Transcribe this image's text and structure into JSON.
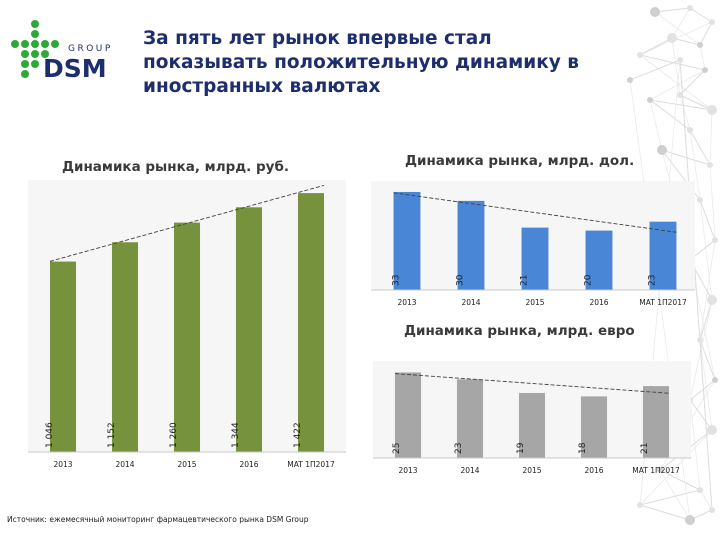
{
  "slide": {
    "title": "За пять лет рынок впервые стал показывать положительную динамику в иностранных валютах",
    "source": "Источник: ежемесячный мониторинг фармацевтического рынка DSM Group"
  },
  "logo": {
    "text_main": "DSM",
    "text_sub": "GROUP",
    "brand_color": "#2ea836",
    "text_color": "#1d2e6e"
  },
  "chart_data": [
    {
      "type": "bar",
      "title": "Динамика рынка, млрд. руб.",
      "categories": [
        "2013",
        "2014",
        "2015",
        "2016",
        "MAT 1П2017"
      ],
      "values": [
        1046,
        1152,
        1260,
        1344,
        1422
      ],
      "value_labels": [
        "1 046",
        "1 152",
        "1 260",
        "1 344",
        "1 422"
      ],
      "color": "#77923c",
      "trendline": true,
      "ylim": [
        0,
        1450
      ]
    },
    {
      "type": "bar",
      "title": "Динамика рынка, млрд. дол.",
      "categories": [
        "2013",
        "2014",
        "2015",
        "2016",
        "MAT 1П2017"
      ],
      "values": [
        33,
        30,
        21,
        20,
        23
      ],
      "value_labels": [
        "33",
        "30",
        "21",
        "20",
        "23"
      ],
      "color": "#4a86d6",
      "trendline": true,
      "ylim": [
        0,
        34
      ]
    },
    {
      "type": "bar",
      "title": "Динамика рынка, млрд. евро",
      "categories": [
        "2013",
        "2014",
        "2015",
        "2016",
        "MAT 1П2017"
      ],
      "values": [
        25,
        23,
        19,
        18,
        21
      ],
      "value_labels": [
        "25",
        "23",
        "19",
        "18",
        "21"
      ],
      "color": "#a6a6a6",
      "trendline": true,
      "ylim": [
        0,
        26
      ]
    }
  ]
}
